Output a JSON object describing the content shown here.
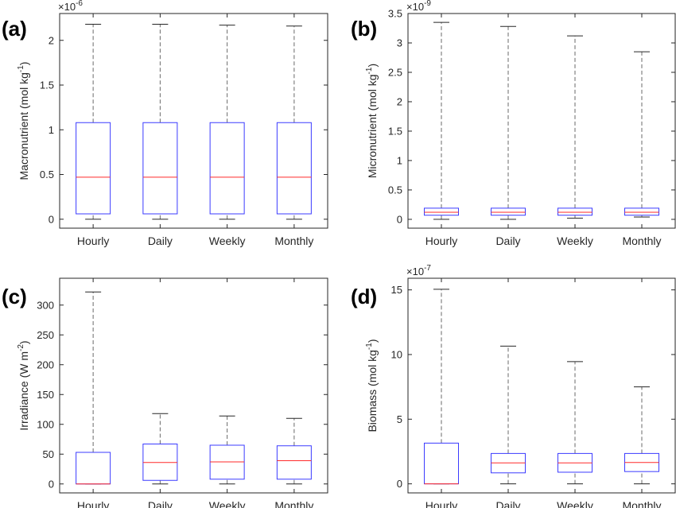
{
  "chart_data": [
    {
      "type": "box",
      "panel_label": "(a)",
      "ylabel": "Macronutrient (mol kg",
      "ylabel_sup": "-1",
      "ylabel_close": ")",
      "exponent_base": "×10",
      "exponent_power": "-6",
      "ylim": [
        -0.1,
        2.3
      ],
      "yticks": [
        0,
        0.5,
        1,
        1.5,
        2
      ],
      "ytick_labels": [
        "0",
        "0.5",
        "1",
        "1.5",
        "2"
      ],
      "categories": [
        "Hourly",
        "Daily",
        "Weekly",
        "Monthly"
      ],
      "boxes": [
        {
          "min": 0.0,
          "q1": 0.06,
          "median": 0.47,
          "q3": 1.08,
          "max": 2.18
        },
        {
          "min": 0.0,
          "q1": 0.06,
          "median": 0.47,
          "q3": 1.08,
          "max": 2.18
        },
        {
          "min": 0.0,
          "q1": 0.06,
          "median": 0.47,
          "q3": 1.08,
          "max": 2.17
        },
        {
          "min": 0.0,
          "q1": 0.06,
          "median": 0.47,
          "q3": 1.08,
          "max": 2.16
        }
      ]
    },
    {
      "type": "box",
      "panel_label": "(b)",
      "ylabel": "Micronutrient (mol kg",
      "ylabel_sup": "-1",
      "ylabel_close": ")",
      "exponent_base": "×10",
      "exponent_power": "-9",
      "ylim": [
        -0.15,
        3.5
      ],
      "yticks": [
        0,
        0.5,
        1,
        1.5,
        2,
        2.5,
        3,
        3.5
      ],
      "ytick_labels": [
        "0",
        "0.5",
        "1",
        "1.5",
        "2",
        "2.5",
        "3",
        "3.5"
      ],
      "categories": [
        "Hourly",
        "Daily",
        "Weekly",
        "Monthly"
      ],
      "boxes": [
        {
          "min": 0.0,
          "q1": 0.07,
          "median": 0.12,
          "q3": 0.19,
          "max": 3.35
        },
        {
          "min": 0.0,
          "q1": 0.07,
          "median": 0.12,
          "q3": 0.19,
          "max": 3.28
        },
        {
          "min": 0.02,
          "q1": 0.07,
          "median": 0.12,
          "q3": 0.19,
          "max": 3.12
        },
        {
          "min": 0.04,
          "q1": 0.07,
          "median": 0.12,
          "q3": 0.19,
          "max": 2.85
        }
      ]
    },
    {
      "type": "box",
      "panel_label": "(c)",
      "ylabel": "Irradiance (W m",
      "ylabel_sup": "-2",
      "ylabel_close": ")",
      "exponent_base": "",
      "exponent_power": "",
      "ylim": [
        -15,
        345
      ],
      "yticks": [
        0,
        50,
        100,
        150,
        200,
        250,
        300
      ],
      "ytick_labels": [
        "0",
        "50",
        "100",
        "150",
        "200",
        "250",
        "300"
      ],
      "categories": [
        "Hourly",
        "Daily",
        "Weekly",
        "Monthly"
      ],
      "boxes": [
        {
          "min": 0,
          "q1": 0,
          "median": 0,
          "q3": 53,
          "max": 322
        },
        {
          "min": 0,
          "q1": 6,
          "median": 36,
          "q3": 67,
          "max": 118
        },
        {
          "min": 0,
          "q1": 8,
          "median": 37,
          "q3": 65,
          "max": 114
        },
        {
          "min": 0,
          "q1": 8,
          "median": 39,
          "q3": 64,
          "max": 110
        }
      ]
    },
    {
      "type": "box",
      "panel_label": "(d)",
      "ylabel": "Biomass (mol kg",
      "ylabel_sup": "-1",
      "ylabel_close": ")",
      "exponent_base": "×10",
      "exponent_power": "-7",
      "ylim": [
        -0.7,
        15.9
      ],
      "yticks": [
        0,
        5,
        10,
        15
      ],
      "ytick_labels": [
        "0",
        "5",
        "10",
        "15"
      ],
      "categories": [
        "Hourly",
        "Daily",
        "Weekly",
        "Monthly"
      ],
      "boxes": [
        {
          "min": 0,
          "q1": 0,
          "median": 0,
          "q3": 3.15,
          "max": 15.05
        },
        {
          "min": 0,
          "q1": 0.85,
          "median": 1.62,
          "q3": 2.35,
          "max": 10.65
        },
        {
          "min": 0,
          "q1": 0.9,
          "median": 1.62,
          "q3": 2.35,
          "max": 9.45
        },
        {
          "min": 0,
          "q1": 0.95,
          "median": 1.65,
          "q3": 2.35,
          "max": 7.5
        }
      ]
    }
  ],
  "colors": {
    "box_edge": "#3b3bff",
    "median": "#ff2a2a",
    "whisker": "#6a6a6a",
    "axis": "#262626"
  }
}
